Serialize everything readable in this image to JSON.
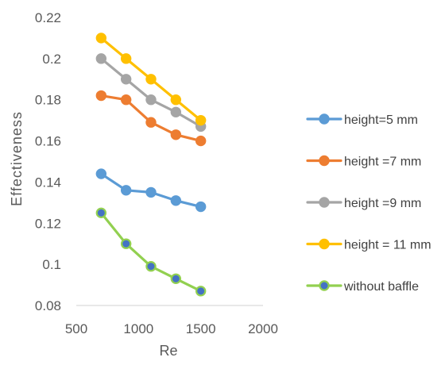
{
  "chart_data": {
    "type": "line",
    "title": "",
    "xlabel": "Re",
    "ylabel": "Effectiveness",
    "xlim": [
      500,
      2000
    ],
    "ylim": [
      0.08,
      0.22
    ],
    "x_ticks": [
      500,
      1000,
      1500,
      2000
    ],
    "x_tick_labels": [
      "500",
      "1000",
      "1500",
      "2000"
    ],
    "y_ticks": [
      0.08,
      0.1,
      0.12,
      0.14,
      0.16,
      0.18,
      0.2,
      0.22
    ],
    "y_tick_labels": [
      "0.08",
      "0.1",
      "0.12",
      "0.14",
      "0.16",
      "0.18",
      "0.2",
      "0.22"
    ],
    "grid": false,
    "legend_position": "right",
    "series": [
      {
        "name": "height=5 mm",
        "color": "#5b9bd5",
        "x": [
          700,
          900,
          1100,
          1300,
          1500
        ],
        "y": [
          0.144,
          0.136,
          0.135,
          0.131,
          0.128
        ]
      },
      {
        "name": "height =7 mm",
        "color": "#ed7d31",
        "x": [
          700,
          900,
          1100,
          1300,
          1500
        ],
        "y": [
          0.182,
          0.18,
          0.169,
          0.163,
          0.16
        ]
      },
      {
        "name": "height =9 mm",
        "color": "#a5a5a5",
        "x": [
          700,
          900,
          1100,
          1300,
          1500
        ],
        "y": [
          0.2,
          0.19,
          0.18,
          0.174,
          0.167
        ]
      },
      {
        "name": "height = 11 mm",
        "color": "#ffc000",
        "x": [
          700,
          900,
          1100,
          1300,
          1500
        ],
        "y": [
          0.21,
          0.2,
          0.19,
          0.18,
          0.17
        ]
      },
      {
        "name": "without baffle",
        "color": "#92d050",
        "marker_color": "#4472c4",
        "x": [
          700,
          900,
          1100,
          1300,
          1500
        ],
        "y": [
          0.125,
          0.11,
          0.099,
          0.093,
          0.087
        ]
      }
    ]
  }
}
